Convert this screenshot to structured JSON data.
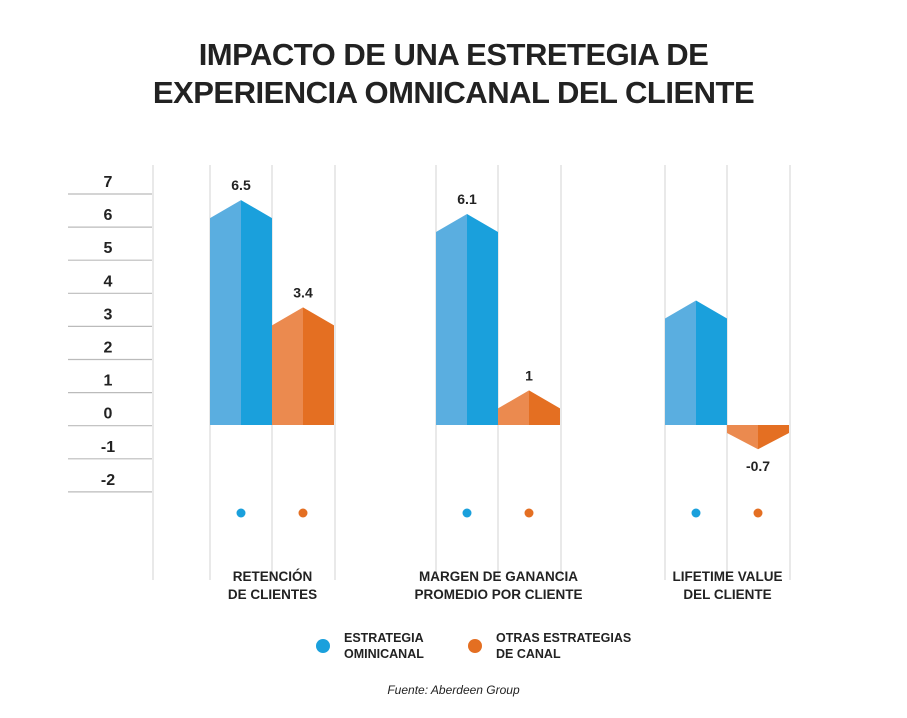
{
  "chart_data": {
    "type": "bar",
    "title_lines": [
      "IMPACTO DE UNA ESTRETEGIA DE",
      "EXPERIENCIA OMNICANAL DEL CLIENTE"
    ],
    "categories": [
      [
        "RETENCIÓN",
        "DE CLIENTES"
      ],
      [
        "MARGEN DE GANANCIA",
        "PROMEDIO POR CLIENTE"
      ],
      [
        "LIFETIME VALUE",
        "DEL CLIENTE"
      ]
    ],
    "series": [
      {
        "name": "ESTRATEGIA OMINICANAL",
        "name_lines": [
          "ESTRATEGIA",
          "OMINICANAL"
        ],
        "values": [
          6.5,
          6.1,
          3.6
        ],
        "labels": [
          "6.5",
          "6.1",
          ""
        ],
        "color": "#1aa0dc",
        "color_light": "#5aaee0"
      },
      {
        "name": "OTRAS ESTRATEGIAS DE CANAL",
        "name_lines": [
          "OTRAS ESTRATEGIAS",
          "DE CANAL"
        ],
        "values": [
          3.4,
          1,
          -0.7
        ],
        "labels": [
          "3.4",
          "1",
          "-0.7"
        ],
        "color": "#e46f22",
        "color_light": "#eb8a4f"
      }
    ],
    "yticks": [
      "7",
      "6",
      "5",
      "4",
      "3",
      "2",
      "1",
      "0",
      "-1",
      "-2"
    ],
    "ylim": [
      -2,
      7
    ],
    "legend_position": "bottom",
    "source": "Fuente: Aberdeen Group"
  }
}
